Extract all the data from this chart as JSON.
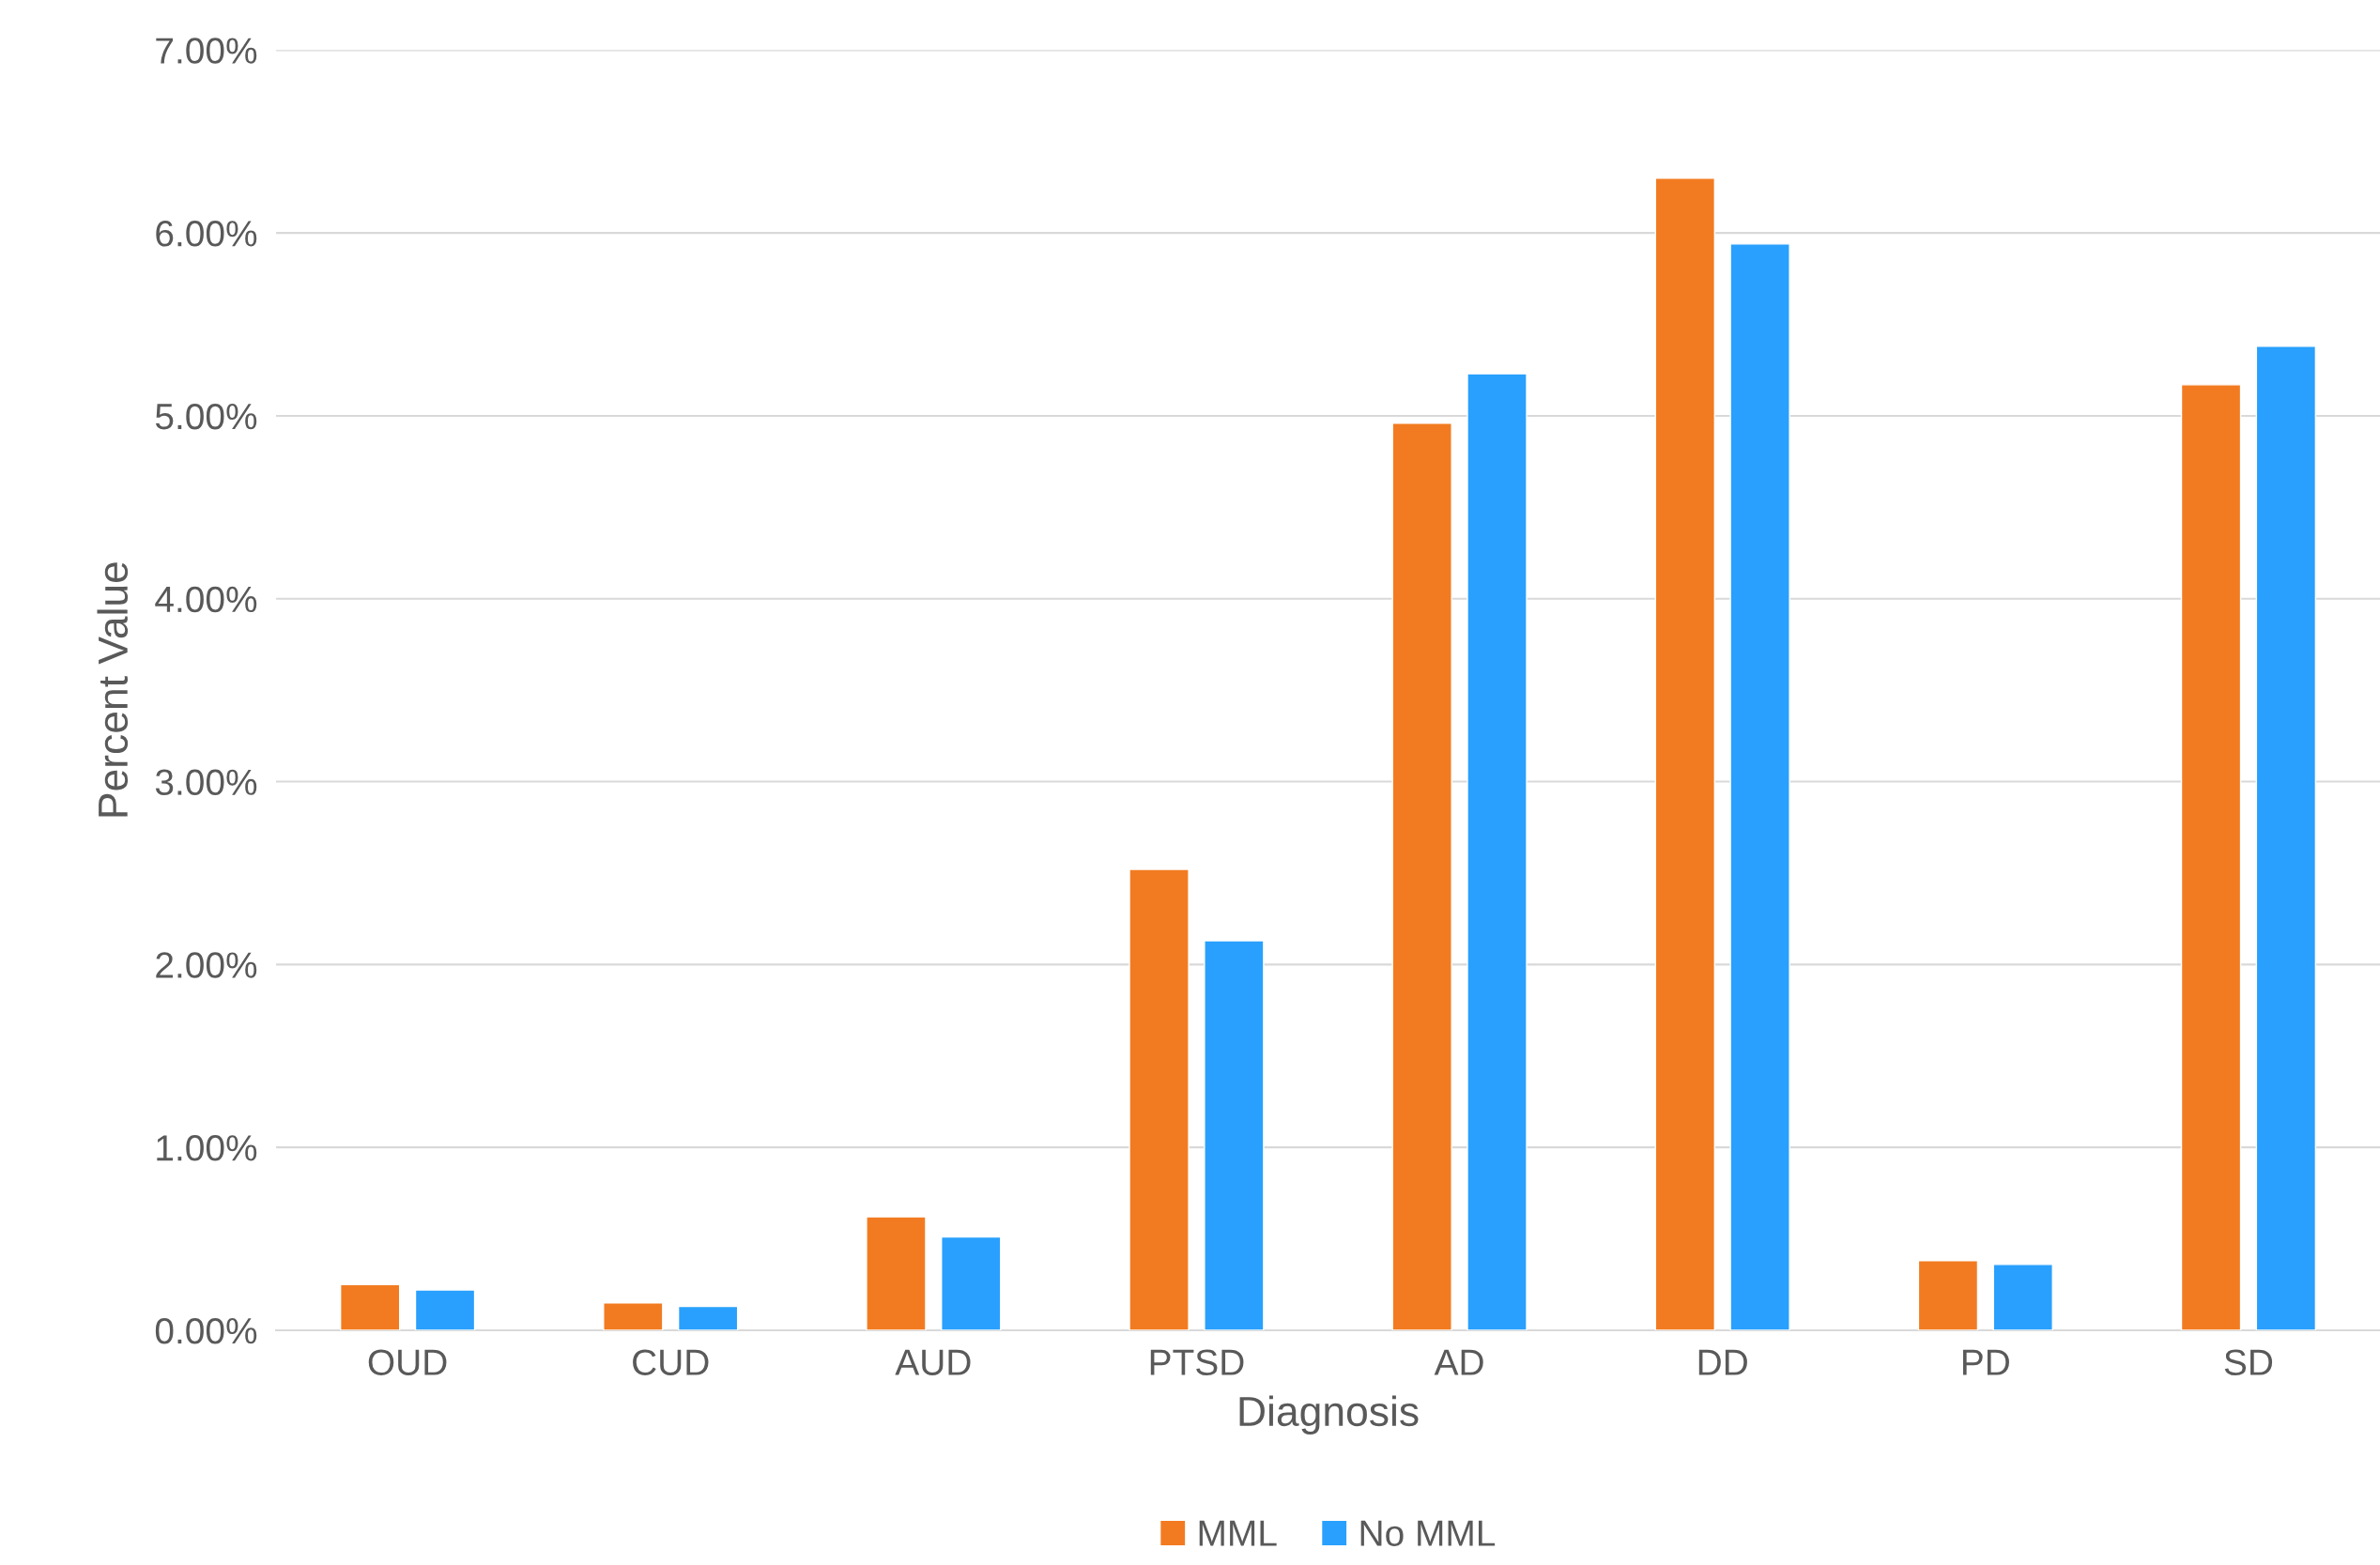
{
  "chart_data": {
    "type": "bar",
    "xlabel": "Diagnosis",
    "ylabel": "Percent Value",
    "categories": [
      "OUD",
      "CUD",
      "AUD",
      "PTSD",
      "AD",
      "DD",
      "PD",
      "SD"
    ],
    "series": [
      {
        "name": "MML",
        "color": "#f27b21",
        "values": [
          0.25,
          0.15,
          0.62,
          2.52,
          4.96,
          6.3,
          0.38,
          5.17
        ]
      },
      {
        "name": "No MML",
        "color": "#29a0fd",
        "values": [
          0.22,
          0.13,
          0.51,
          2.13,
          5.23,
          5.94,
          0.36,
          5.38
        ]
      }
    ],
    "ylim": [
      0,
      7
    ],
    "yticks": [
      {
        "value": 0,
        "label": "0.00%"
      },
      {
        "value": 1,
        "label": "1.00%"
      },
      {
        "value": 2,
        "label": "2.00%"
      },
      {
        "value": 3,
        "label": "3.00%"
      },
      {
        "value": 4,
        "label": "4.00%"
      },
      {
        "value": 5,
        "label": "5.00%"
      },
      {
        "value": 6,
        "label": "6.00%"
      },
      {
        "value": 7,
        "label": "7.00%"
      }
    ],
    "grid": "y",
    "legend": "bottom"
  }
}
